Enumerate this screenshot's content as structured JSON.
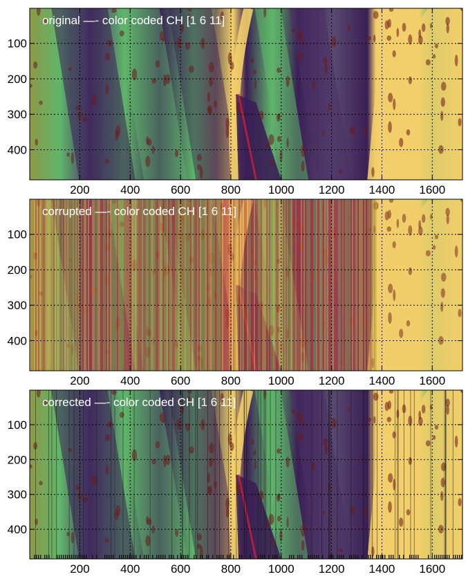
{
  "figure": {
    "colors": {
      "dark_purple": "#3a1f55",
      "green": "#5fb56a",
      "olive": "#8c9a4a",
      "yellow": "#f2cf6a",
      "red": "#c8203a",
      "dark_red": "#6e1a1a",
      "grid": "#000000"
    },
    "x_tick_labels": [
      "200",
      "400",
      "600",
      "800",
      "1000",
      "1200",
      "1400",
      "1600"
    ],
    "y_tick_labels": [
      "100",
      "200",
      "300",
      "400"
    ],
    "x_ticks": [
      200,
      400,
      600,
      800,
      1000,
      1200,
      1400,
      1600
    ],
    "y_ticks": [
      100,
      200,
      300,
      400
    ],
    "x_range": [
      1,
      1720
    ],
    "y_range": [
      1,
      485
    ],
    "grid": "dotted"
  },
  "panels": [
    {
      "title": "original —- color coded CH [1 6 11]",
      "style": "original"
    },
    {
      "title": "corrupted —- color coded CH [1 6 11]",
      "style": "corrupted"
    },
    {
      "title": "corrected —- color coded CH [1 6 11]",
      "style": "corrected"
    }
  ]
}
